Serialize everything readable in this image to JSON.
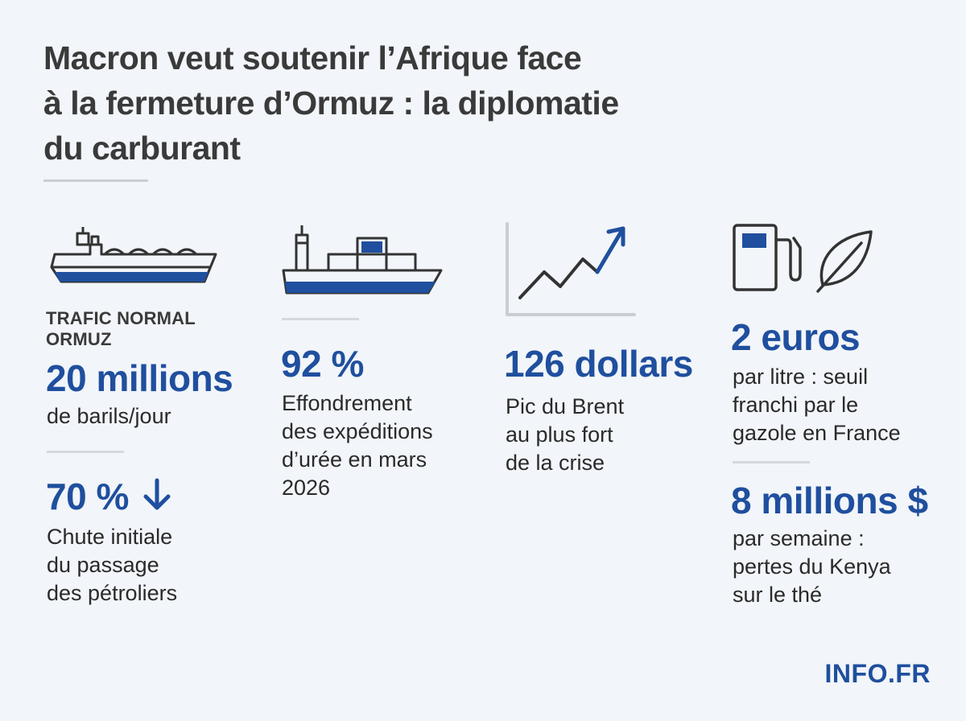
{
  "title": "Macron veut soutenir l’Afrique face\nà la fermeture d’Ormuz : la diplomatie\ndu carburant",
  "colors": {
    "accent": "#1f4f9e",
    "text": "#2a2a2a",
    "background": "#f2f5f9"
  },
  "columns": [
    {
      "icon": "oil-tanker-icon",
      "kicker": "TRAFIC NORMAL\nORMUZ",
      "stat": "20 millions",
      "desc": "de barils/jour",
      "second_stat": "70 %",
      "second_icon": "arrow-down-icon",
      "second_desc": "Chute initiale\ndu passage\ndes pétroliers"
    },
    {
      "icon": "container-ship-icon",
      "stat": "92 %",
      "desc": "Effondrement\ndes expéditions\nd’urée en mars\n2026"
    },
    {
      "icon": "rising-chart-icon",
      "stat": "126 dollars",
      "desc": "Pic du Brent\nau plus fort\nde la crise"
    },
    {
      "icon": "fuel-pump-icon",
      "icon2": "leaf-icon",
      "stat": "2 euros",
      "desc": "par litre : seuil\nfranchi par le\ngazole en France",
      "second_stat": "8 millions $",
      "second_desc": "par semaine :\npertes du Kenya\nsur le thé"
    }
  ],
  "brand": "INFO.FR"
}
